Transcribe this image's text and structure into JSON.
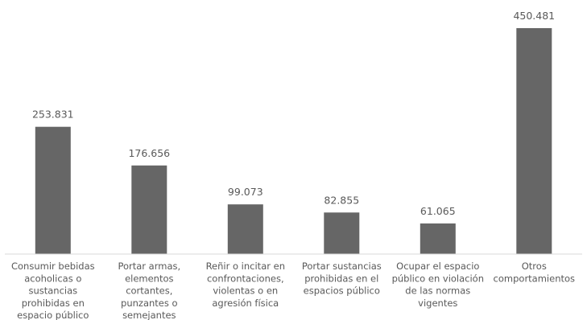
{
  "chart_data": {
    "type": "bar",
    "title": "",
    "xlabel": "",
    "ylabel": "",
    "ylim": [
      0,
      450481
    ],
    "grid": false,
    "legend": "none",
    "colors": {
      "bar": "#666666",
      "axis": "#d9d9d9",
      "text": "#595959"
    },
    "categories": [
      [
        "Consumir bebidas",
        "acoholicas o",
        "sustancias",
        "prohibidas en",
        "espacio público"
      ],
      [
        "Portar armas,",
        "elementos",
        "cortantes,",
        "punzantes o",
        "semejantes"
      ],
      [
        "Reñir o incitar en",
        "confrontaciones,",
        "violentas o en",
        "agresión física"
      ],
      [
        "Portar sustancias",
        "prohibidas en el",
        "espacios público"
      ],
      [
        "Ocupar el espacio",
        "público en violación",
        "de las normas",
        "vigentes"
      ],
      [
        "Otros",
        "comportamientos"
      ]
    ],
    "values": [
      253831,
      176656,
      99073,
      82855,
      61065,
      450481
    ],
    "value_labels": [
      "253.831",
      "176.656",
      "99.073",
      "82.855",
      "61.065",
      "450.481"
    ]
  }
}
